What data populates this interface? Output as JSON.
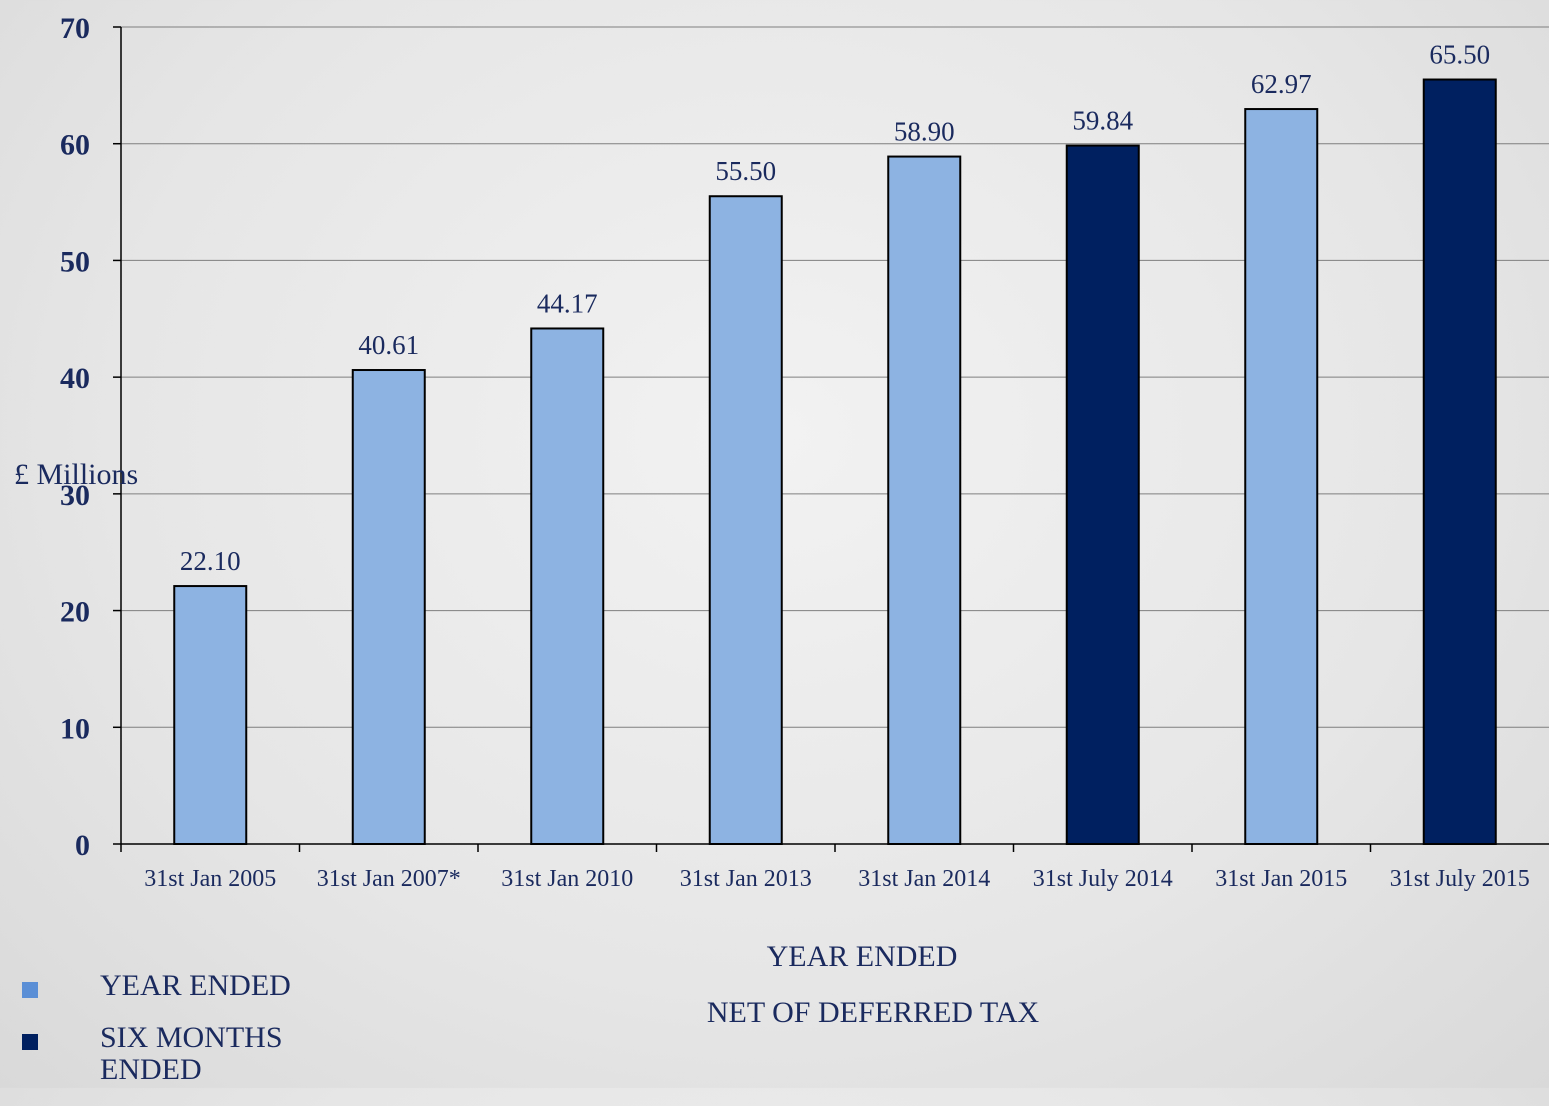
{
  "chart_data": {
    "type": "bar",
    "categories": [
      "31st Jan 2005",
      "31st Jan 2007*",
      "31st Jan 2010",
      "31st Jan 2013",
      "31st Jan 2014",
      "31st July 2014",
      "31st Jan 2015",
      "31st July 2015"
    ],
    "values": [
      22.1,
      40.61,
      44.17,
      55.5,
      58.9,
      59.84,
      62.97,
      65.5
    ],
    "value_labels": [
      "22.10",
      "40.61",
      "44.17",
      "55.50",
      "58.90",
      "59.84",
      "62.97",
      "65.50"
    ],
    "bar_series": [
      "year_ended",
      "year_ended",
      "year_ended",
      "year_ended",
      "year_ended",
      "six_months_ended",
      "year_ended",
      "six_months_ended"
    ],
    "series": [
      {
        "key": "year_ended",
        "name": "YEAR ENDED",
        "color": "#8db3e2"
      },
      {
        "key": "six_months_ended",
        "name": "SIX MONTHS ENDED",
        "color": "#002060"
      }
    ],
    "ylabel": "£ Millions",
    "xlabel": "YEAR ENDED",
    "subtitle": "NET OF DEFERRED TAX",
    "ylim": [
      0,
      70
    ],
    "yticks": [
      0,
      10,
      20,
      30,
      40,
      50,
      60,
      70
    ],
    "grid": true,
    "legend_position": "bottom-left"
  }
}
